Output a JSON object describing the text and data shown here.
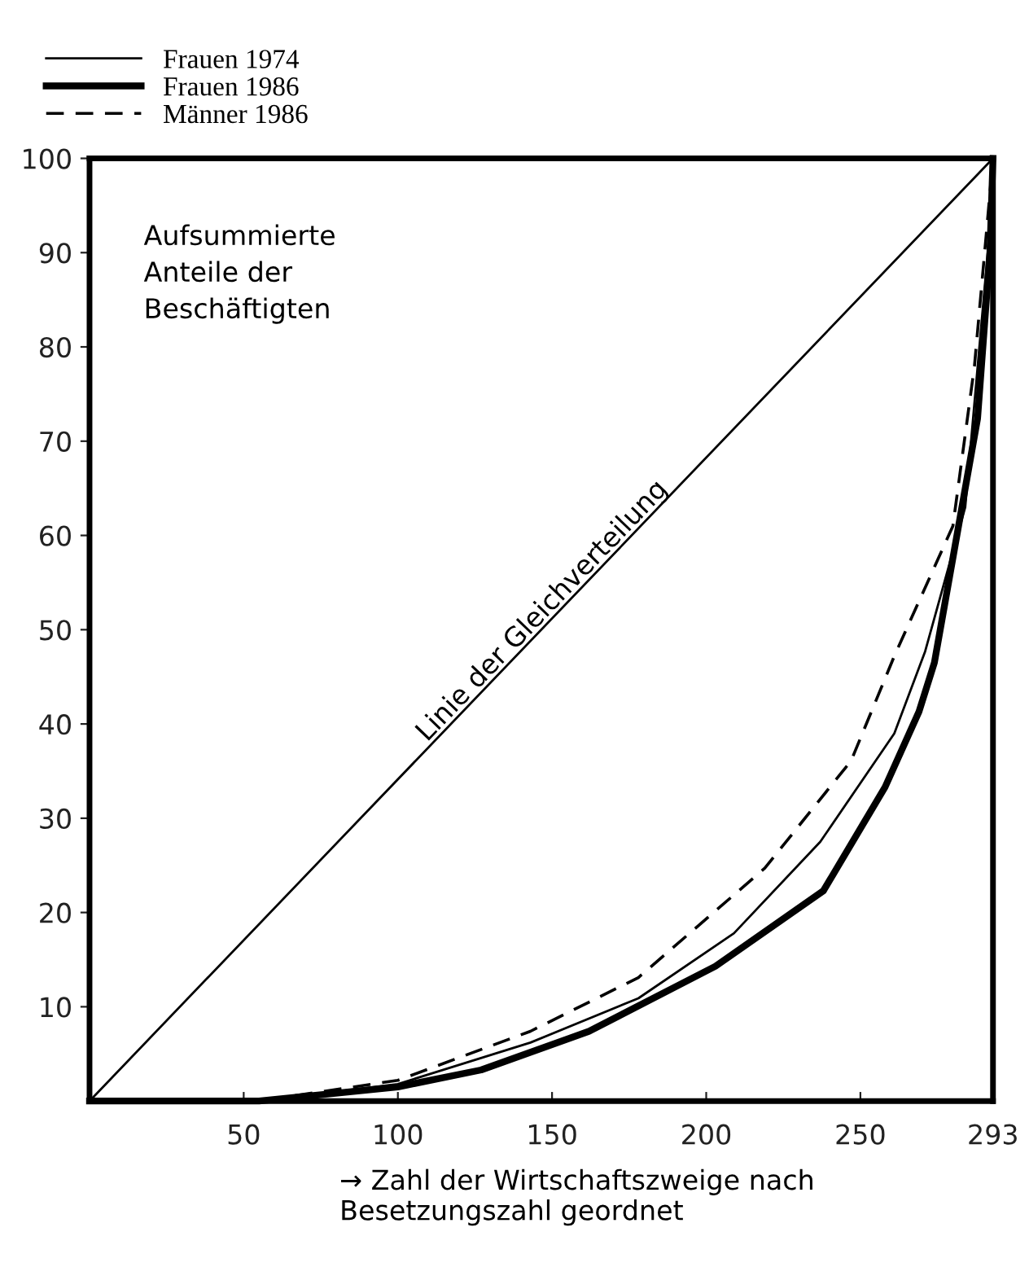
{
  "chart_data": {
    "type": "line",
    "ylabel": "Aufsummierte\nAnteile der\nBeschäftigten",
    "xlabel": "→ Zahl der Wirtschaftszweige nach Besetzungszahl geordnet",
    "xlim": [
      0,
      293
    ],
    "xticks": [
      50,
      100,
      150,
      200,
      250,
      293
    ],
    "ylim": [
      0,
      100
    ],
    "yticks": [
      10,
      20,
      30,
      40,
      50,
      60,
      70,
      80,
      90,
      100
    ],
    "grid": false,
    "legend": "top left",
    "marker": "none",
    "annotations": [
      {
        "text": "Linie der Gleichverteilung",
        "x": 150,
        "y": 51
      }
    ],
    "series": [
      {
        "color": "#000000",
        "line_style": "solid",
        "x": [
          0,
          293
        ],
        "values": [
          0,
          100
        ]
      },
      {
        "name": "Frauen 1974",
        "color": "#000000",
        "line_style": "solid",
        "x": [
          0,
          55,
          100,
          143,
          178,
          209,
          237,
          261,
          271,
          284,
          292,
          293
        ],
        "values": [
          0,
          0,
          1.8,
          6.2,
          10.9,
          17.8,
          27.5,
          39,
          47.7,
          63,
          92.6,
          100
        ]
      },
      {
        "name": "Frauen 1986",
        "color": "#000000",
        "line_style": "solid",
        "x": [
          0,
          55,
          100,
          127,
          162,
          203,
          238,
          258,
          269,
          274,
          288,
          292,
          293
        ],
        "values": [
          0,
          0,
          1.5,
          3.3,
          7.4,
          14.3,
          22.3,
          33.3,
          41.3,
          46.5,
          72.4,
          90,
          100
        ]
      },
      {
        "name": "Männer 1986",
        "color": "#000000",
        "line_style": "dashed",
        "x": [
          0,
          55,
          100,
          143,
          178,
          219,
          247,
          261,
          280,
          287,
          291,
          293
        ],
        "values": [
          0,
          0,
          2.2,
          7.4,
          13.1,
          24.7,
          36.1,
          47.2,
          61,
          78,
          92.6,
          100
        ]
      }
    ]
  }
}
